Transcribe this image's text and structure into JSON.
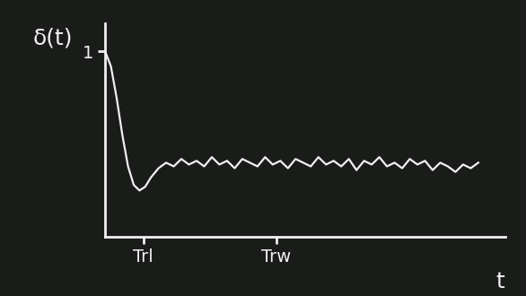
{
  "chart_data": {
    "type": "line",
    "y_label": "δ(t)",
    "x_label": "t",
    "x": [
      0,
      0.15,
      0.3,
      0.45,
      0.6,
      0.75,
      0.9,
      1.05,
      1.2,
      1.4,
      1.6,
      1.8,
      2.0,
      2.2,
      2.4,
      2.6,
      2.8,
      3.0,
      3.2,
      3.4,
      3.6,
      3.8,
      4.0,
      4.2,
      4.4,
      4.6,
      4.8,
      5.0,
      5.2,
      5.4,
      5.6,
      5.8,
      6.0,
      6.2,
      6.4,
      6.6,
      6.8,
      7.0,
      7.2,
      7.4,
      7.6,
      7.8,
      8.0,
      8.2,
      8.4,
      8.6,
      8.8,
      9.0,
      9.2,
      9.4,
      9.6,
      9.8
    ],
    "values": [
      1.0,
      0.92,
      0.75,
      0.55,
      0.38,
      0.28,
      0.25,
      0.27,
      0.32,
      0.37,
      0.4,
      0.38,
      0.42,
      0.39,
      0.41,
      0.38,
      0.43,
      0.39,
      0.41,
      0.37,
      0.42,
      0.4,
      0.38,
      0.43,
      0.39,
      0.41,
      0.37,
      0.42,
      0.4,
      0.38,
      0.43,
      0.39,
      0.41,
      0.38,
      0.42,
      0.36,
      0.41,
      0.39,
      0.43,
      0.38,
      0.4,
      0.37,
      0.42,
      0.39,
      0.41,
      0.36,
      0.4,
      0.38,
      0.35,
      0.39,
      0.37,
      0.4
    ],
    "color": "#f0f0f0",
    "xlim": [
      0,
      10.5
    ],
    "ylim": [
      0,
      1.15
    ],
    "xticks": [
      {
        "value": 1.0,
        "label": "Trl"
      },
      {
        "value": 4.5,
        "label": "Trw"
      }
    ],
    "yticks": [
      1
    ],
    "grid": false
  }
}
